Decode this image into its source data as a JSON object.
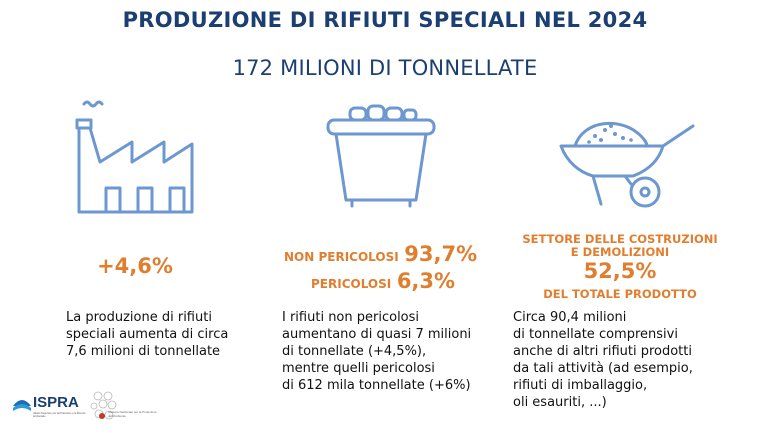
{
  "header": {
    "title": "PRODUZIONE DI RIFIUTI SPECIALI NEL 2024",
    "subtitle": "172 MILIONI DI TONNELLATE"
  },
  "columns": [
    {
      "icon": "factory-icon",
      "stat": "+4,6%",
      "description_lines": [
        "La produzione di rifiuti",
        "speciali aumenta di circa",
        "7,6 milioni di tonnellate"
      ]
    },
    {
      "icon": "waste-container-icon",
      "non_hazardous_label": "NON PERICOLOSI",
      "non_hazardous_value": "93,7%",
      "hazardous_label": "PERICOLOSI",
      "hazardous_value": "6,3%",
      "description_lines": [
        "I rifiuti non pericolosi",
        "aumentano di quasi 7 milioni",
        "di tonnellate (+4,5%),",
        "mentre quelli pericolosi",
        "di 612 mila tonnellate (+6%)"
      ]
    },
    {
      "icon": "wheelbarrow-icon",
      "sector_line1": "SETTORE DELLE COSTRUZIONI",
      "sector_line2": "E DEMOLIZIONI",
      "stat": "52,5%",
      "stat_caption": "DEL TOTALE PRODOTTO",
      "description_lines": [
        "Circa 90,4 milioni",
        "di tonnellate comprensivi",
        "anche di altri rifiuti prodotti",
        "da tali attività (ad esempio,",
        "rifiuti di imballaggio,",
        "oli esauriti, ...)"
      ]
    }
  ],
  "footer": {
    "logo_name": "ISPRA",
    "logo_tagline": "Istituto Superiore per la Protezione e la Ricerca Ambientale",
    "partner_logo_text": "Sistema Nazionale per la Protezione dell'Ambiente"
  },
  "colors": {
    "title_blue": "#1c3f73",
    "icon_blue": "#6d97cf",
    "accent_orange": "#e07e2f"
  }
}
